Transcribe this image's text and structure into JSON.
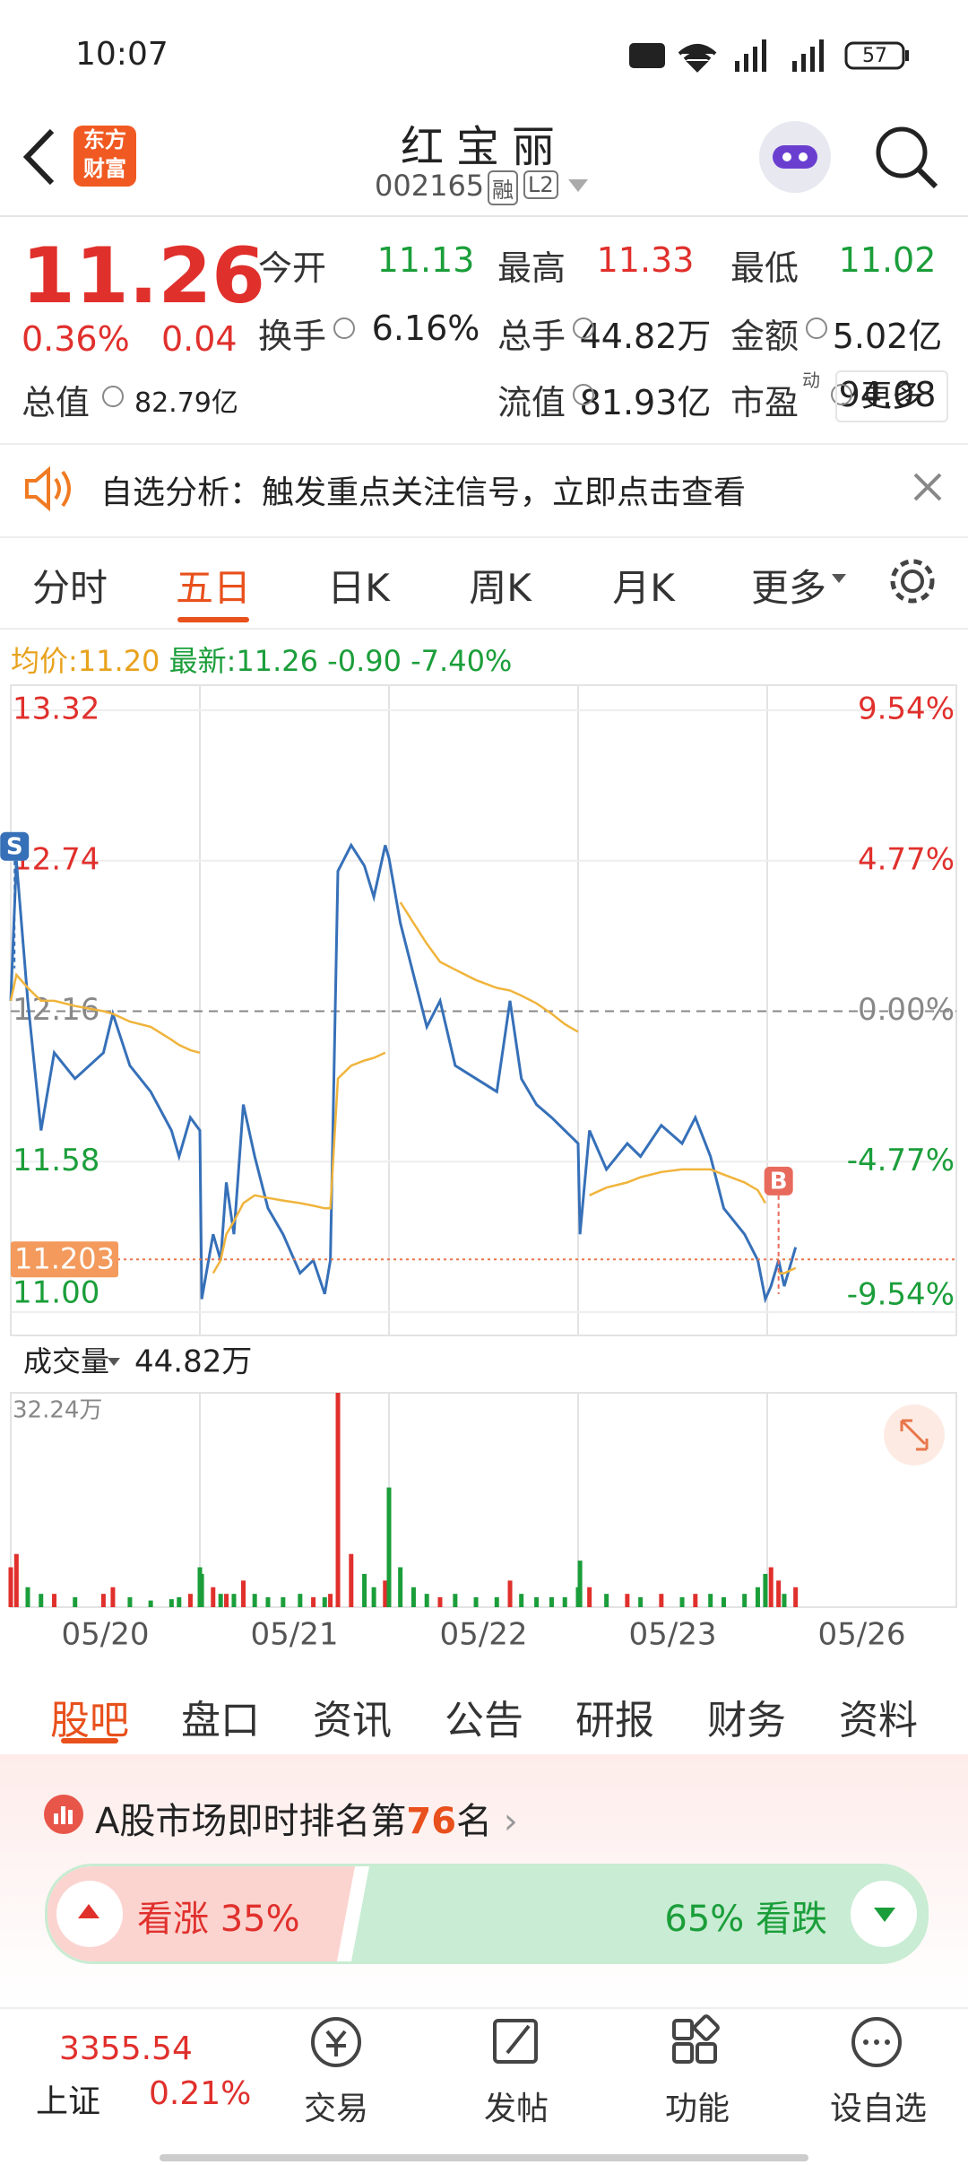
{
  "status": {
    "time": "10:07",
    "battery": "57"
  },
  "header": {
    "logo": [
      "东方",
      "财富"
    ],
    "title": "红宝丽",
    "code": "002165",
    "badges": [
      "融",
      "L2"
    ]
  },
  "quote": {
    "price": "11.26",
    "pct": "0.36%",
    "change": "0.04",
    "more": "更多",
    "fields": [
      {
        "label": "今开",
        "value": "11.13",
        "color": "green"
      },
      {
        "label": "最高",
        "value": "11.33",
        "color": "red"
      },
      {
        "label": "最低",
        "value": "11.02",
        "color": "green"
      },
      {
        "label": "换手",
        "value": "6.16%",
        "color": "black"
      },
      {
        "label": "总手",
        "value": "44.82万",
        "color": "black"
      },
      {
        "label": "金额",
        "value": "5.02亿",
        "color": "black"
      },
      {
        "label": "总值",
        "value": "82.79亿",
        "color": "black"
      },
      {
        "label": "流值",
        "value": "81.93亿",
        "color": "black"
      },
      {
        "label": "市盈",
        "sup": "动",
        "value": "94.08",
        "color": "black"
      }
    ]
  },
  "notice": "自选分析：触发重点关注信号，立即点击查看",
  "tabs": {
    "items": [
      "分时",
      "五日",
      "日K",
      "周K",
      "月K",
      "更多"
    ],
    "active": 1
  },
  "chart_data": {
    "type": "line",
    "legend": {
      "avg_label": "均价:",
      "avg": "11.20",
      "latest_label": "最新:",
      "latest": "11.26",
      "change": "-0.90",
      "pct": "-7.40%"
    },
    "categories": [
      "05/20",
      "05/21",
      "05/22",
      "05/23",
      "05/26"
    ],
    "xlim": [
      0,
      5
    ],
    "xticks": [
      0,
      1,
      2,
      3,
      4,
      5
    ],
    "ylim": [
      11.0,
      13.32
    ],
    "yticks": [
      13.32,
      12.74,
      12.16,
      11.58,
      {
        "value": 11,
        "label": "11.00"
      }
    ],
    "y2lim": [
      -9.54,
      9.54
    ],
    "y2ticks": [
      {
        "value": 9.54,
        "label": "9.54%"
      },
      {
        "value": 4.77,
        "label": "4.77%"
      },
      {
        "value": 0,
        "label": "0.00%"
      },
      {
        "value": -4.77,
        "label": "-4.77%"
      },
      {
        "value": -9.54,
        "label": "-9.54%"
      }
    ],
    "reference": {
      "value": 12.16,
      "label": "12.16"
    },
    "current": {
      "value": 11.203,
      "label": "11.203"
    },
    "markers": [
      {
        "label": "S",
        "x": 0.02,
        "value": 12.74,
        "color": "#3670b8"
      },
      {
        "label": "B",
        "x": 4.06,
        "value": 11.45,
        "color": "#e86a5c"
      }
    ],
    "x": [
      0,
      0.03,
      0.09,
      0.16,
      0.23,
      0.34,
      0.49,
      0.54,
      0.63,
      0.74,
      0.85,
      0.89,
      0.95,
      1.0,
      1.01,
      1.07,
      1.11,
      1.14,
      1.18,
      1.23,
      1.29,
      1.36,
      1.44,
      1.53,
      1.6,
      1.66,
      1.69,
      1.73,
      1.8,
      1.87,
      1.92,
      1.98,
      2.0,
      2.06,
      2.13,
      2.2,
      2.27,
      2.35,
      2.46,
      2.57,
      2.64,
      2.7,
      2.78,
      2.86,
      2.93,
      3.0,
      3.01,
      3.06,
      3.15,
      3.26,
      3.33,
      3.44,
      3.55,
      3.62,
      3.7,
      3.77,
      3.88,
      3.95,
      3.99,
      4.02,
      4.06,
      4.09,
      4.15
    ],
    "series": [
      {
        "name": "最新",
        "color": "#3670b8",
        "values": [
          12.2,
          12.74,
          12.2,
          11.7,
          12.0,
          11.9,
          12.0,
          12.15,
          11.95,
          11.85,
          11.7,
          11.6,
          11.75,
          11.7,
          11.05,
          11.3,
          11.2,
          11.5,
          11.3,
          11.8,
          11.6,
          11.4,
          11.3,
          11.15,
          11.2,
          11.07,
          11.2,
          12.7,
          12.8,
          12.72,
          12.6,
          12.8,
          12.75,
          12.5,
          12.3,
          12.1,
          12.2,
          11.95,
          11.9,
          11.85,
          12.2,
          11.9,
          11.8,
          11.75,
          11.7,
          11.65,
          11.3,
          11.7,
          11.55,
          11.65,
          11.6,
          11.72,
          11.65,
          11.75,
          11.6,
          11.4,
          11.3,
          11.2,
          11.05,
          11.1,
          11.2,
          11.1,
          11.25
        ]
      },
      {
        "name": "均价",
        "color": "#f0b43c",
        "values": [
          12.2,
          12.3,
          12.25,
          12.2,
          12.2,
          12.18,
          12.16,
          12.15,
          12.12,
          12.1,
          12.05,
          12.03,
          12.01,
          12.0,
          null,
          11.15,
          11.2,
          11.3,
          11.35,
          11.42,
          11.45,
          11.44,
          11.43,
          11.42,
          11.41,
          11.4,
          11.4,
          11.9,
          11.95,
          11.97,
          11.98,
          12.0,
          null,
          12.58,
          12.5,
          12.42,
          12.35,
          12.32,
          12.28,
          12.25,
          12.24,
          12.22,
          12.19,
          12.15,
          12.11,
          12.08,
          null,
          11.45,
          11.48,
          11.5,
          11.52,
          11.54,
          11.55,
          11.55,
          11.55,
          11.53,
          11.5,
          11.47,
          11.42,
          null,
          11.15,
          11.15,
          11.17
        ]
      }
    ],
    "volume": {
      "label": "成交量",
      "total": "44.82万",
      "vlim": [
        0,
        32.24
      ],
      "vticks": [
        {
          "value": 32.24,
          "label": "32.24万"
        }
      ],
      "up_color": "#e0302c",
      "down_color": "#1b9e3a",
      "values": [
        6,
        8,
        3,
        2,
        2,
        1.5,
        2,
        3,
        1.5,
        1,
        1.2,
        1.5,
        2,
        6,
        5,
        3,
        2,
        2,
        2,
        4,
        2,
        1.5,
        1.5,
        2,
        1.5,
        1.5,
        2,
        32.24,
        8,
        5,
        3,
        4,
        18,
        6,
        3,
        2,
        1.5,
        2,
        1.5,
        1.5,
        4,
        2,
        1.5,
        1.5,
        1.5,
        3,
        7,
        3,
        2,
        2,
        1.5,
        2,
        1.5,
        2,
        2,
        1.5,
        2,
        3,
        5,
        6,
        4,
        2,
        3
      ]
    },
    "grid": true
  },
  "sections": {
    "items": [
      "股吧",
      "盘口",
      "资讯",
      "公告",
      "研报",
      "财务",
      "资料"
    ],
    "active": 0
  },
  "ranking": {
    "prefix": "A股市场即时排名第",
    "rank": "76",
    "suffix": "名"
  },
  "sentiment": {
    "values": [
      35,
      65
    ],
    "value_labels": [
      "看涨 35%",
      "65% 看跌"
    ]
  },
  "bottom": {
    "index": {
      "name": "上证",
      "value": "3355.54",
      "pct": "0.21%"
    },
    "items": [
      "交易",
      "发帖",
      "功能",
      "设自选"
    ]
  }
}
